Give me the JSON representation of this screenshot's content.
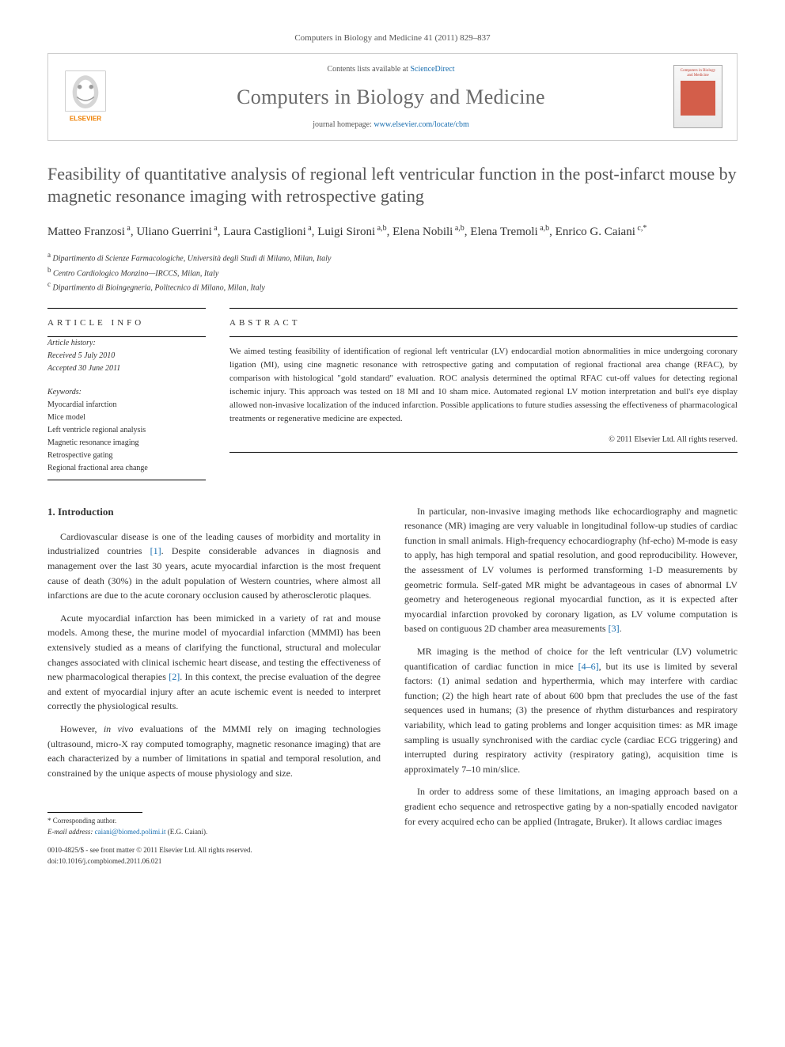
{
  "journal_ref": "Computers in Biology and Medicine 41 (2011) 829–837",
  "header": {
    "contents_prefix": "Contents lists available at ",
    "contents_link_text": "ScienceDirect",
    "journal_name": "Computers in Biology and Medicine",
    "homepage_prefix": "journal homepage: ",
    "homepage_link_text": "www.elsevier.com/locate/cbm",
    "publisher_label": "ELSEVIER",
    "cover_label": "Computers in Biology and Medicine"
  },
  "title": "Feasibility of quantitative analysis of regional left ventricular function in the post-infarct mouse by magnetic resonance imaging with retrospective gating",
  "authors_html": "Matteo Franzosi<sup> a</sup>, Uliano Guerrini<sup> a</sup>, Laura Castiglioni<sup> a</sup>, Luigi Sironi<sup> a,b</sup>, Elena Nobili<sup> a,b</sup>, Elena Tremoli<sup> a,b</sup>, Enrico G. Caiani<sup> c,*</sup>",
  "affiliations": [
    {
      "sup": "a",
      "text": "Dipartimento di Scienze Farmacologiche, Università degli Studi di Milano, Milan, Italy"
    },
    {
      "sup": "b",
      "text": "Centro Cardiologico Monzino—IRCCS, Milan, Italy"
    },
    {
      "sup": "c",
      "text": "Dipartimento di Bioingegneria, Politecnico di Milano, Milan, Italy"
    }
  ],
  "article_info": {
    "heading": "ARTICLE INFO",
    "history_label": "Article history:",
    "received": "Received 5 July 2010",
    "accepted": "Accepted 30 June 2011",
    "keywords_label": "Keywords:",
    "keywords": [
      "Myocardial infarction",
      "Mice model",
      "Left ventricle regional analysis",
      "Magnetic resonance imaging",
      "Retrospective gating",
      "Regional fractional area change"
    ]
  },
  "abstract": {
    "heading": "ABSTRACT",
    "text": "We aimed testing feasibility of identification of regional left ventricular (LV) endocardial motion abnormalities in mice undergoing coronary ligation (MI), using cine magnetic resonance with retrospective gating and computation of regional fractional area change (RFAC), by comparison with histological \"gold standard\" evaluation. ROC analysis determined the optimal RFAC cut-off values for detecting regional ischemic injury. This approach was tested on 18 MI and 10 sham mice. Automated regional LV motion interpretation and bull's eye display allowed non-invasive localization of the induced infarction. Possible applications to future studies assessing the effectiveness of pharmacological treatments or regenerative medicine are expected.",
    "copyright": "© 2011 Elsevier Ltd. All rights reserved."
  },
  "body": {
    "section_number": "1.",
    "section_title": "Introduction",
    "left_paragraphs": [
      "Cardiovascular disease is one of the leading causes of morbidity and mortality in industrialized countries [1]. Despite considerable advances in diagnosis and management over the last 30 years, acute myocardial infarction is the most frequent cause of death (30%) in the adult population of Western countries, where almost all infarctions are due to the acute coronary occlusion caused by atherosclerotic plaques.",
      "Acute myocardial infarction has been mimicked in a variety of rat and mouse models. Among these, the murine model of myocardial infarction (MMMI) has been extensively studied as a means of clarifying the functional, structural and molecular changes associated with clinical ischemic heart disease, and testing the effectiveness of new pharmacological therapies [2]. In this context, the precise evaluation of the degree and extent of myocardial injury after an acute ischemic event is needed to interpret correctly the physiological results.",
      "However, in vivo evaluations of the MMMI rely on imaging technologies (ultrasound, micro-X ray computed tomography, magnetic resonance imaging) that are each characterized by a number of limitations in spatial and temporal resolution, and constrained by the unique aspects of mouse physiology and size."
    ],
    "right_paragraphs": [
      "In particular, non-invasive imaging methods like echocardiography and magnetic resonance (MR) imaging are very valuable in longitudinal follow-up studies of cardiac function in small animals. High-frequency echocardiography (hf-echo) M-mode is easy to apply, has high temporal and spatial resolution, and good reproducibility. However, the assessment of LV volumes is performed transforming 1-D measurements by geometric formula. Self-gated MR might be advantageous in cases of abnormal LV geometry and heterogeneous regional myocardial function, as it is expected after myocardial infarction provoked by coronary ligation, as LV volume computation is based on contiguous 2D chamber area measurements [3].",
      "MR imaging is the method of choice for the left ventricular (LV) volumetric quantification of cardiac function in mice [4–6], but its use is limited by several factors: (1) animal sedation and hyperthermia, which may interfere with cardiac function; (2) the high heart rate of about 600 bpm that precludes the use of the fast sequences used in humans; (3) the presence of rhythm disturbances and respiratory variability, which lead to gating problems and longer acquisition times: as MR image sampling is usually synchronised with the cardiac cycle (cardiac ECG triggering) and interrupted during respiratory activity (respiratory gating), acquisition time is approximately 7–10 min/slice.",
      "In order to address some of these limitations, an imaging approach based on a gradient echo sequence and retrospective gating by a non-spatially encoded navigator for every acquired echo can be applied (Intragate, Bruker). It allows cardiac images"
    ]
  },
  "footnote": {
    "corr_label": "* Corresponding author.",
    "email_label": "E-mail address:",
    "email": "caiani@biomed.polimi.it",
    "email_name": "(E.G. Caiani)."
  },
  "doi": {
    "line1": "0010-4825/$ - see front matter © 2011 Elsevier Ltd. All rights reserved.",
    "line2": "doi:10.1016/j.compbiomed.2011.06.021"
  },
  "colors": {
    "link": "#1a6fb0",
    "title_gray": "#555555",
    "journal_gray": "#6a6a6a",
    "elsevier_orange": "#ee7f00",
    "cover_red": "#c0392b"
  }
}
